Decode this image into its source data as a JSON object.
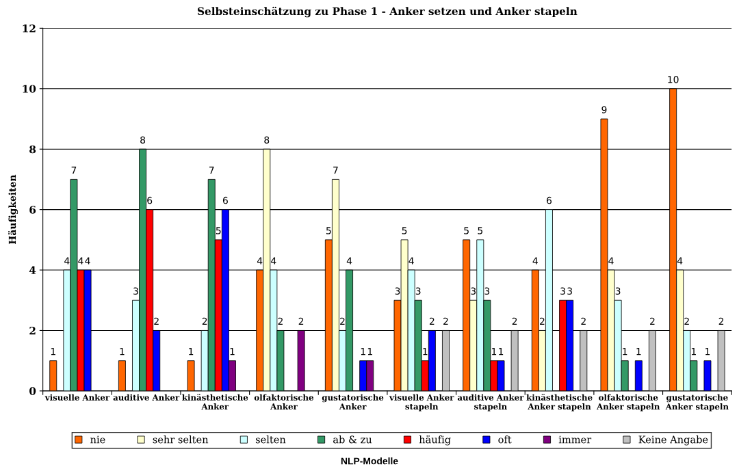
{
  "chart_data": {
    "type": "bar",
    "title": "Selbsteinschätzung zu Phase 1 - Anker setzen und Anker stapeln",
    "xlabel": "NLP-Modelle",
    "ylabel": "Häufigkeiten",
    "categories": [
      "visuelle Anker",
      "auditive Anker",
      "kinästhetische\nAnker",
      "olfaktorische\nAnker",
      "gustatorische\nAnker",
      "visuelle Anker\nstapeln",
      "auditive Anker\nstapeln",
      "kinästhetische\nAnker stapeln",
      "olfaktorische\nAnker stapeln",
      "gustatorische\nAnker stapeln"
    ],
    "series": [
      {
        "name": "nie",
        "color": "#ff6600",
        "values": [
          1,
          1,
          1,
          4,
          5,
          3,
          5,
          4,
          9,
          10
        ]
      },
      {
        "name": "sehr selten",
        "color": "#ffffcc",
        "values": [
          null,
          null,
          null,
          8,
          7,
          5,
          3,
          2,
          4,
          4
        ]
      },
      {
        "name": "selten",
        "color": "#ccffff",
        "values": [
          4,
          3,
          2,
          4,
          2,
          4,
          5,
          6,
          3,
          2
        ]
      },
      {
        "name": "ab & zu",
        "color": "#339966",
        "values": [
          7,
          8,
          7,
          2,
          4,
          3,
          3,
          null,
          1,
          1
        ]
      },
      {
        "name": "häufig",
        "color": "#ff0000",
        "values": [
          4,
          6,
          5,
          null,
          null,
          1,
          1,
          3,
          null,
          null
        ]
      },
      {
        "name": "oft",
        "color": "#0000ff",
        "values": [
          4,
          2,
          6,
          null,
          1,
          2,
          1,
          3,
          1,
          1
        ]
      },
      {
        "name": "immer",
        "color": "#800080",
        "values": [
          null,
          null,
          1,
          2,
          1,
          null,
          null,
          null,
          null,
          null
        ]
      },
      {
        "name": "Keine Angabe",
        "color": "#c0c0c0",
        "values": [
          null,
          null,
          null,
          null,
          null,
          2,
          2,
          2,
          2,
          2
        ]
      }
    ],
    "ylim": [
      0,
      12
    ],
    "yticks": [
      0,
      2,
      4,
      6,
      8,
      10,
      12
    ],
    "grid": "y",
    "legend": "bottom",
    "data_labels": true
  }
}
